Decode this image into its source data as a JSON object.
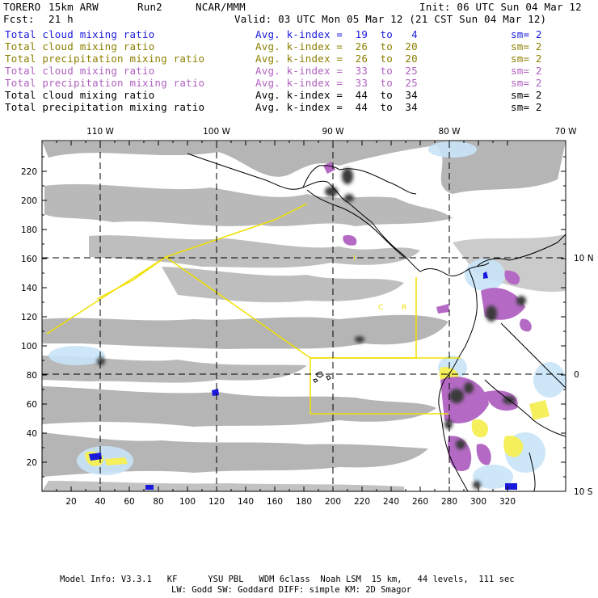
{
  "header": {
    "model": "TORERO",
    "resolution": "15km ARW",
    "run": "Run2",
    "org": "NCAR/MMM",
    "init": "Init: 06 UTC Sun 04 Mar 12",
    "fcst_label": "Fcst:",
    "fcst_value": "21 h",
    "valid": "Valid: 03 UTC Mon 05 Mar 12 (21 CST Sun 04 Mar 12)"
  },
  "legend": [
    {
      "field": "Total cloud mixing ratio",
      "kidx": "Avg. k-index =  19  to   4",
      "sm": "sm= 2",
      "color": "#1a1adc"
    },
    {
      "field": "Total cloud mixing ratio",
      "kidx": "Avg. k-index =  26  to  20",
      "sm": "sm= 2",
      "color": "#8c8000"
    },
    {
      "field": "Total precipitation mixing ratio",
      "kidx": "Avg. k-index =  26  to  20",
      "sm": "sm= 2",
      "color": "#8c8000"
    },
    {
      "field": "Total cloud mixing ratio",
      "kidx": "Avg. k-index =  33  to  25",
      "sm": "sm= 2",
      "color": "#b060c0"
    },
    {
      "field": "Total precipitation mixing ratio",
      "kidx": "Avg. k-index =  33  to  25",
      "sm": "sm= 2",
      "color": "#b060c0"
    },
    {
      "field": "Total cloud mixing ratio",
      "kidx": "Avg. k-index =  44  to  34",
      "sm": "sm= 2",
      "color": "#000000"
    },
    {
      "field": "Total precipitation mixing ratio",
      "kidx": "Avg. k-index =  44  to  34",
      "sm": "sm= 2",
      "color": "#000000"
    }
  ],
  "map": {
    "lon_labels": [
      "110 W",
      "100 W",
      "90 W",
      "80 W",
      "70 W"
    ],
    "lat_labels": [
      "10 N",
      "0",
      "10 S"
    ],
    "x_ticks": [
      "20",
      "40",
      "60",
      "80",
      "100",
      "120",
      "140",
      "160",
      "180",
      "200",
      "220",
      "240",
      "260",
      "280",
      "300",
      "320"
    ],
    "y_ticks": [
      "220",
      "200",
      "180",
      "160",
      "140",
      "120",
      "100",
      "80",
      "60",
      "40",
      "20"
    ],
    "region_labels": [
      "I",
      "C",
      "R"
    ]
  },
  "footer": {
    "line1": "Model Info: V3.3.1   KF      YSU PBL   WDM 6class  Noah LSM  15 km,   44 levels,  111 sec",
    "line2": "LW: Godd SW: Goddard DIFF: simple KM: 2D Smagor"
  }
}
